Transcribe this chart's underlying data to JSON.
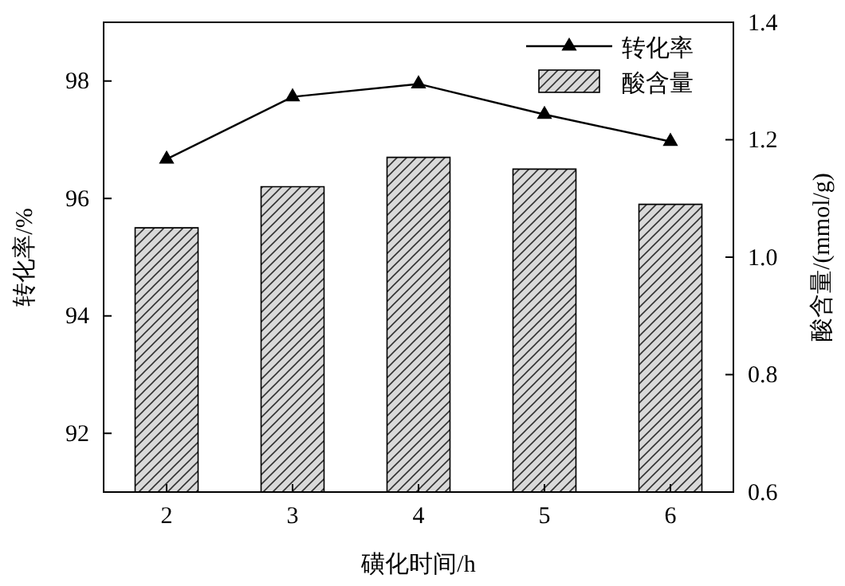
{
  "chart_data": {
    "type": "bar",
    "xlabel": "磺化时间/h",
    "ylabel": "转化率/%",
    "y2label": "酸含量/(mmol/g)",
    "categories": [
      "2",
      "3",
      "4",
      "5",
      "6"
    ],
    "series": [
      {
        "name": "转化率",
        "type": "line",
        "color": "#000000",
        "values": [
          96.67,
          97.73,
          97.95,
          97.43,
          96.97
        ],
        "marker": "triangle"
      },
      {
        "name": "酸含量",
        "axis": "y2",
        "color": "#d9d9d9",
        "values": [
          1.05,
          1.12,
          1.17,
          1.15,
          1.09
        ]
      }
    ],
    "ylim": [
      91,
      99
    ],
    "yticks": [
      92,
      94,
      96,
      98
    ],
    "y2lim": [
      0.6,
      1.4
    ],
    "y2ticks": [
      {
        "value": 0.6,
        "label": "0.6"
      },
      {
        "value": 0.8,
        "label": "0.8"
      },
      {
        "value": 1.0,
        "label": "1.0"
      },
      {
        "value": 1.2,
        "label": "1.2"
      },
      {
        "value": 1.4,
        "label": "1.4"
      }
    ],
    "grid": false,
    "legend": "top right"
  }
}
